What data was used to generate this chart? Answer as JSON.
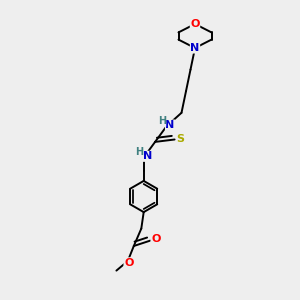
{
  "background_color": "#eeeeee",
  "atom_colors": {
    "C": "#000000",
    "N": "#0000cc",
    "O": "#ff0000",
    "S": "#aaaa00",
    "H": "#408080"
  },
  "bond_color": "#000000",
  "bond_width": 1.4,
  "fig_width": 3.0,
  "fig_height": 3.0,
  "dpi": 100
}
